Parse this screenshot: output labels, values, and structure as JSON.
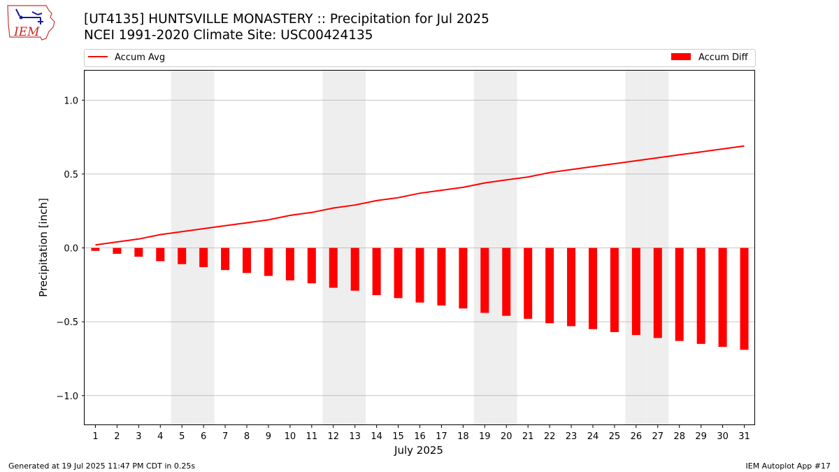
{
  "header": {
    "title_line1": "[UT4135] HUNTSVILLE MONASTERY :: Precipitation for Jul 2025",
    "title_line2": "NCEI 1991-2020 Climate Site: USC00424135",
    "logo_text": "IEM"
  },
  "footer": {
    "generated": "Generated at 19 Jul 2025 11:47 PM CDT in 0.25s",
    "app": "IEM Autoplot App #17"
  },
  "colors": {
    "series": "#ff0000",
    "weekend_shade": "#eeeeee",
    "grid": "#b0b0b0"
  },
  "chart_data": {
    "type": "bar",
    "xlabel": "July 2025",
    "ylabel": "Precipitation [inch]",
    "ylim": [
      -1.2,
      1.2
    ],
    "xlim": [
      0.5,
      31.5
    ],
    "yticks": [
      -1.0,
      -0.5,
      0.0,
      0.5,
      1.0
    ],
    "ytick_labels": [
      "−1.0",
      "−0.5",
      "0.0",
      "0.5",
      "1.0"
    ],
    "grid": "horizontal",
    "legend": [
      {
        "name": "Accum Avg",
        "kind": "line",
        "placement": "top-left"
      },
      {
        "name": "Accum Diff",
        "kind": "bar",
        "placement": "top-right"
      }
    ],
    "shaded_days": [
      5,
      6,
      12,
      13,
      19,
      20,
      26,
      27
    ],
    "days": [
      1,
      2,
      3,
      4,
      5,
      6,
      7,
      8,
      9,
      10,
      11,
      12,
      13,
      14,
      15,
      16,
      17,
      18,
      19,
      20,
      21,
      22,
      23,
      24,
      25,
      26,
      27,
      28,
      29,
      30,
      31
    ],
    "series": [
      {
        "name": "Accum Avg",
        "kind": "line",
        "values": [
          0.02,
          0.04,
          0.06,
          0.09,
          0.11,
          0.13,
          0.15,
          0.17,
          0.19,
          0.22,
          0.24,
          0.27,
          0.29,
          0.32,
          0.34,
          0.37,
          0.39,
          0.41,
          0.44,
          0.46,
          0.48,
          0.51,
          0.53,
          0.55,
          0.57,
          0.59,
          0.61,
          0.63,
          0.65,
          0.67,
          0.69
        ]
      },
      {
        "name": "Accum Diff",
        "kind": "bar",
        "values": [
          -0.02,
          -0.04,
          -0.06,
          -0.09,
          -0.11,
          -0.13,
          -0.15,
          -0.17,
          -0.19,
          -0.22,
          -0.24,
          -0.27,
          -0.29,
          -0.32,
          -0.34,
          -0.37,
          -0.39,
          -0.41,
          -0.44,
          -0.46,
          -0.48,
          -0.51,
          -0.53,
          -0.55,
          -0.57,
          -0.59,
          -0.61,
          -0.63,
          -0.65,
          -0.67,
          -0.69
        ]
      }
    ]
  }
}
